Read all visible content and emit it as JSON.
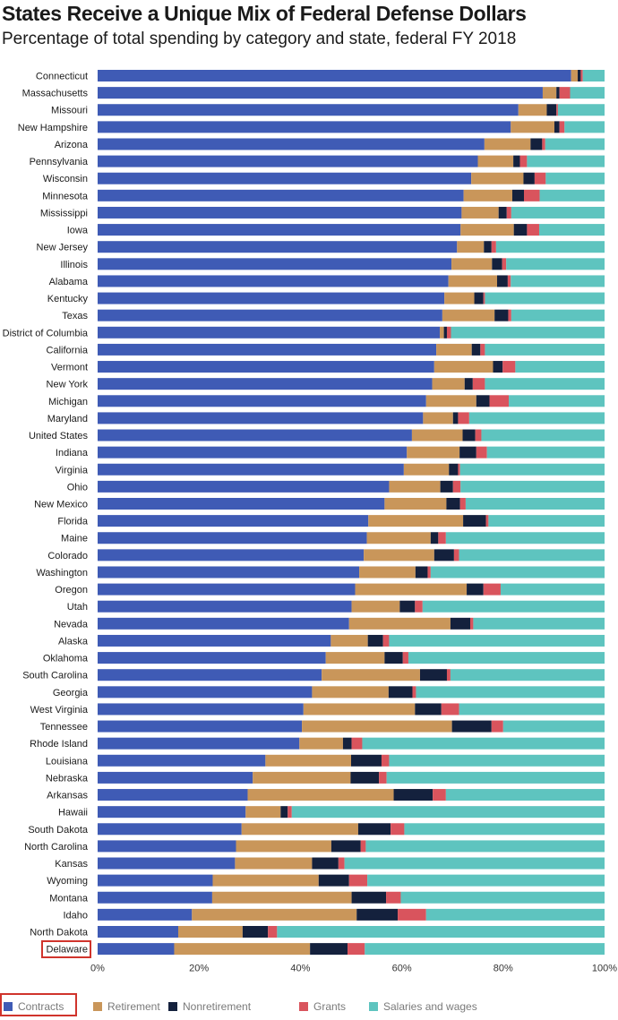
{
  "title": "States Receive a Unique Mix of Federal Defense Dollars",
  "subtitle": "Percentage of total spending by category and state, federal FY 2018",
  "colors": {
    "Contracts": "#3f5bb5",
    "Retirement": "#c9965a",
    "Nonretirement": "#14213d",
    "Grants": "#d9545d",
    "Salaries and wages": "#5ec4bf",
    "highlight": "#d0342c"
  },
  "chart_data": {
    "type": "bar",
    "orientation": "horizontal",
    "stacked": true,
    "xlim": [
      0,
      100
    ],
    "x_ticks": [
      "0%",
      "20%",
      "40%",
      "60%",
      "80%",
      "100%"
    ],
    "grid": false,
    "legend": "bottom",
    "highlighted_category": "Delaware",
    "highlighted_series": "Contracts",
    "categories": [
      "Connecticut",
      "Massachusetts",
      "Missouri",
      "New Hampshire",
      "Arizona",
      "Pennsylvania",
      "Wisconsin",
      "Minnesota",
      "Mississippi",
      "Iowa",
      "New Jersey",
      "Illinois",
      "Alabama",
      "Kentucky",
      "Texas",
      "District of Columbia",
      "California",
      "Vermont",
      "New York",
      "Michigan",
      "Maryland",
      "United States",
      "Indiana",
      "Virginia",
      "Ohio",
      "New Mexico",
      "Florida",
      "Maine",
      "Colorado",
      "Washington",
      "Oregon",
      "Utah",
      "Nevada",
      "Alaska",
      "Oklahoma",
      "South Carolina",
      "Georgia",
      "West Virginia",
      "Tennessee",
      "Rhode Island",
      "Louisiana",
      "Nebraska",
      "Arkansas",
      "Hawaii",
      "South Dakota",
      "North Carolina",
      "Kansas",
      "Wyoming",
      "Montana",
      "Idaho",
      "North Dakota",
      "Delaware"
    ],
    "series": [
      {
        "name": "Contracts",
        "values": [
          93.4,
          87.8,
          83.0,
          81.5,
          76.3,
          75.0,
          73.7,
          72.2,
          71.8,
          71.6,
          70.9,
          69.8,
          69.2,
          68.4,
          68.0,
          67.5,
          66.8,
          66.4,
          66.0,
          64.8,
          64.2,
          62.0,
          61.0,
          60.4,
          57.5,
          56.6,
          53.4,
          53.1,
          52.5,
          51.6,
          50.8,
          50.1,
          49.6,
          46.0,
          45.0,
          44.2,
          42.3,
          40.6,
          40.3,
          39.8,
          33.1,
          30.6,
          29.6,
          29.2,
          28.4,
          27.3,
          27.1,
          22.7,
          22.6,
          18.6,
          15.9,
          15.1
        ]
      },
      {
        "name": "Retirement",
        "values": [
          1.3,
          2.7,
          5.6,
          8.6,
          9.1,
          7.0,
          10.3,
          9.6,
          7.3,
          10.5,
          5.3,
          8.0,
          9.6,
          5.9,
          10.3,
          0.8,
          7.0,
          11.6,
          6.4,
          9.9,
          5.9,
          10.0,
          10.4,
          8.9,
          10.1,
          12.2,
          18.7,
          12.6,
          13.9,
          11.1,
          22.0,
          9.5,
          20.0,
          7.3,
          11.6,
          19.4,
          15.1,
          22.0,
          29.6,
          8.6,
          16.9,
          19.3,
          28.8,
          6.9,
          23.0,
          18.8,
          15.2,
          20.9,
          27.5,
          32.5,
          12.7,
          26.8
        ]
      },
      {
        "name": "Nonretirement",
        "values": [
          0.6,
          0.6,
          1.9,
          1.0,
          2.3,
          1.3,
          2.2,
          2.3,
          1.6,
          2.6,
          1.5,
          2.0,
          2.1,
          1.8,
          2.7,
          0.6,
          1.7,
          1.9,
          1.6,
          2.6,
          1.0,
          2.5,
          3.3,
          1.8,
          2.5,
          2.7,
          4.5,
          1.5,
          3.9,
          2.4,
          3.3,
          3.0,
          3.9,
          3.0,
          3.6,
          5.3,
          4.7,
          5.2,
          7.8,
          1.7,
          6.0,
          5.6,
          7.7,
          1.4,
          6.4,
          5.8,
          5.2,
          6.0,
          6.8,
          8.1,
          5.0,
          7.4
        ]
      },
      {
        "name": "Grants",
        "values": [
          0.4,
          2.1,
          0.3,
          1.0,
          0.6,
          1.4,
          2.2,
          3.1,
          0.9,
          2.4,
          0.9,
          0.8,
          0.6,
          0.3,
          0.6,
          0.8,
          0.9,
          2.5,
          2.4,
          3.8,
          2.2,
          1.2,
          2.1,
          0.4,
          1.5,
          1.1,
          0.5,
          1.5,
          1.0,
          0.6,
          3.4,
          1.5,
          0.6,
          1.2,
          1.1,
          0.7,
          0.7,
          3.5,
          2.3,
          2.1,
          1.5,
          1.5,
          2.6,
          0.8,
          2.7,
          1.0,
          1.2,
          3.6,
          2.9,
          5.6,
          1.8,
          3.4
        ]
      },
      {
        "name": "Salaries and wages",
        "values": [
          4.3,
          6.8,
          9.2,
          7.9,
          11.7,
          15.3,
          11.6,
          12.8,
          18.4,
          12.9,
          21.4,
          19.4,
          18.5,
          23.6,
          18.4,
          30.3,
          23.6,
          17.6,
          23.6,
          18.9,
          26.7,
          24.3,
          23.2,
          28.5,
          28.4,
          27.4,
          22.9,
          31.3,
          28.7,
          34.3,
          20.5,
          35.9,
          25.9,
          42.5,
          38.7,
          30.4,
          37.2,
          28.7,
          20.0,
          47.8,
          42.5,
          43.0,
          31.3,
          61.7,
          39.5,
          47.1,
          51.3,
          46.8,
          40.2,
          35.2,
          64.6,
          47.3
        ]
      }
    ]
  }
}
